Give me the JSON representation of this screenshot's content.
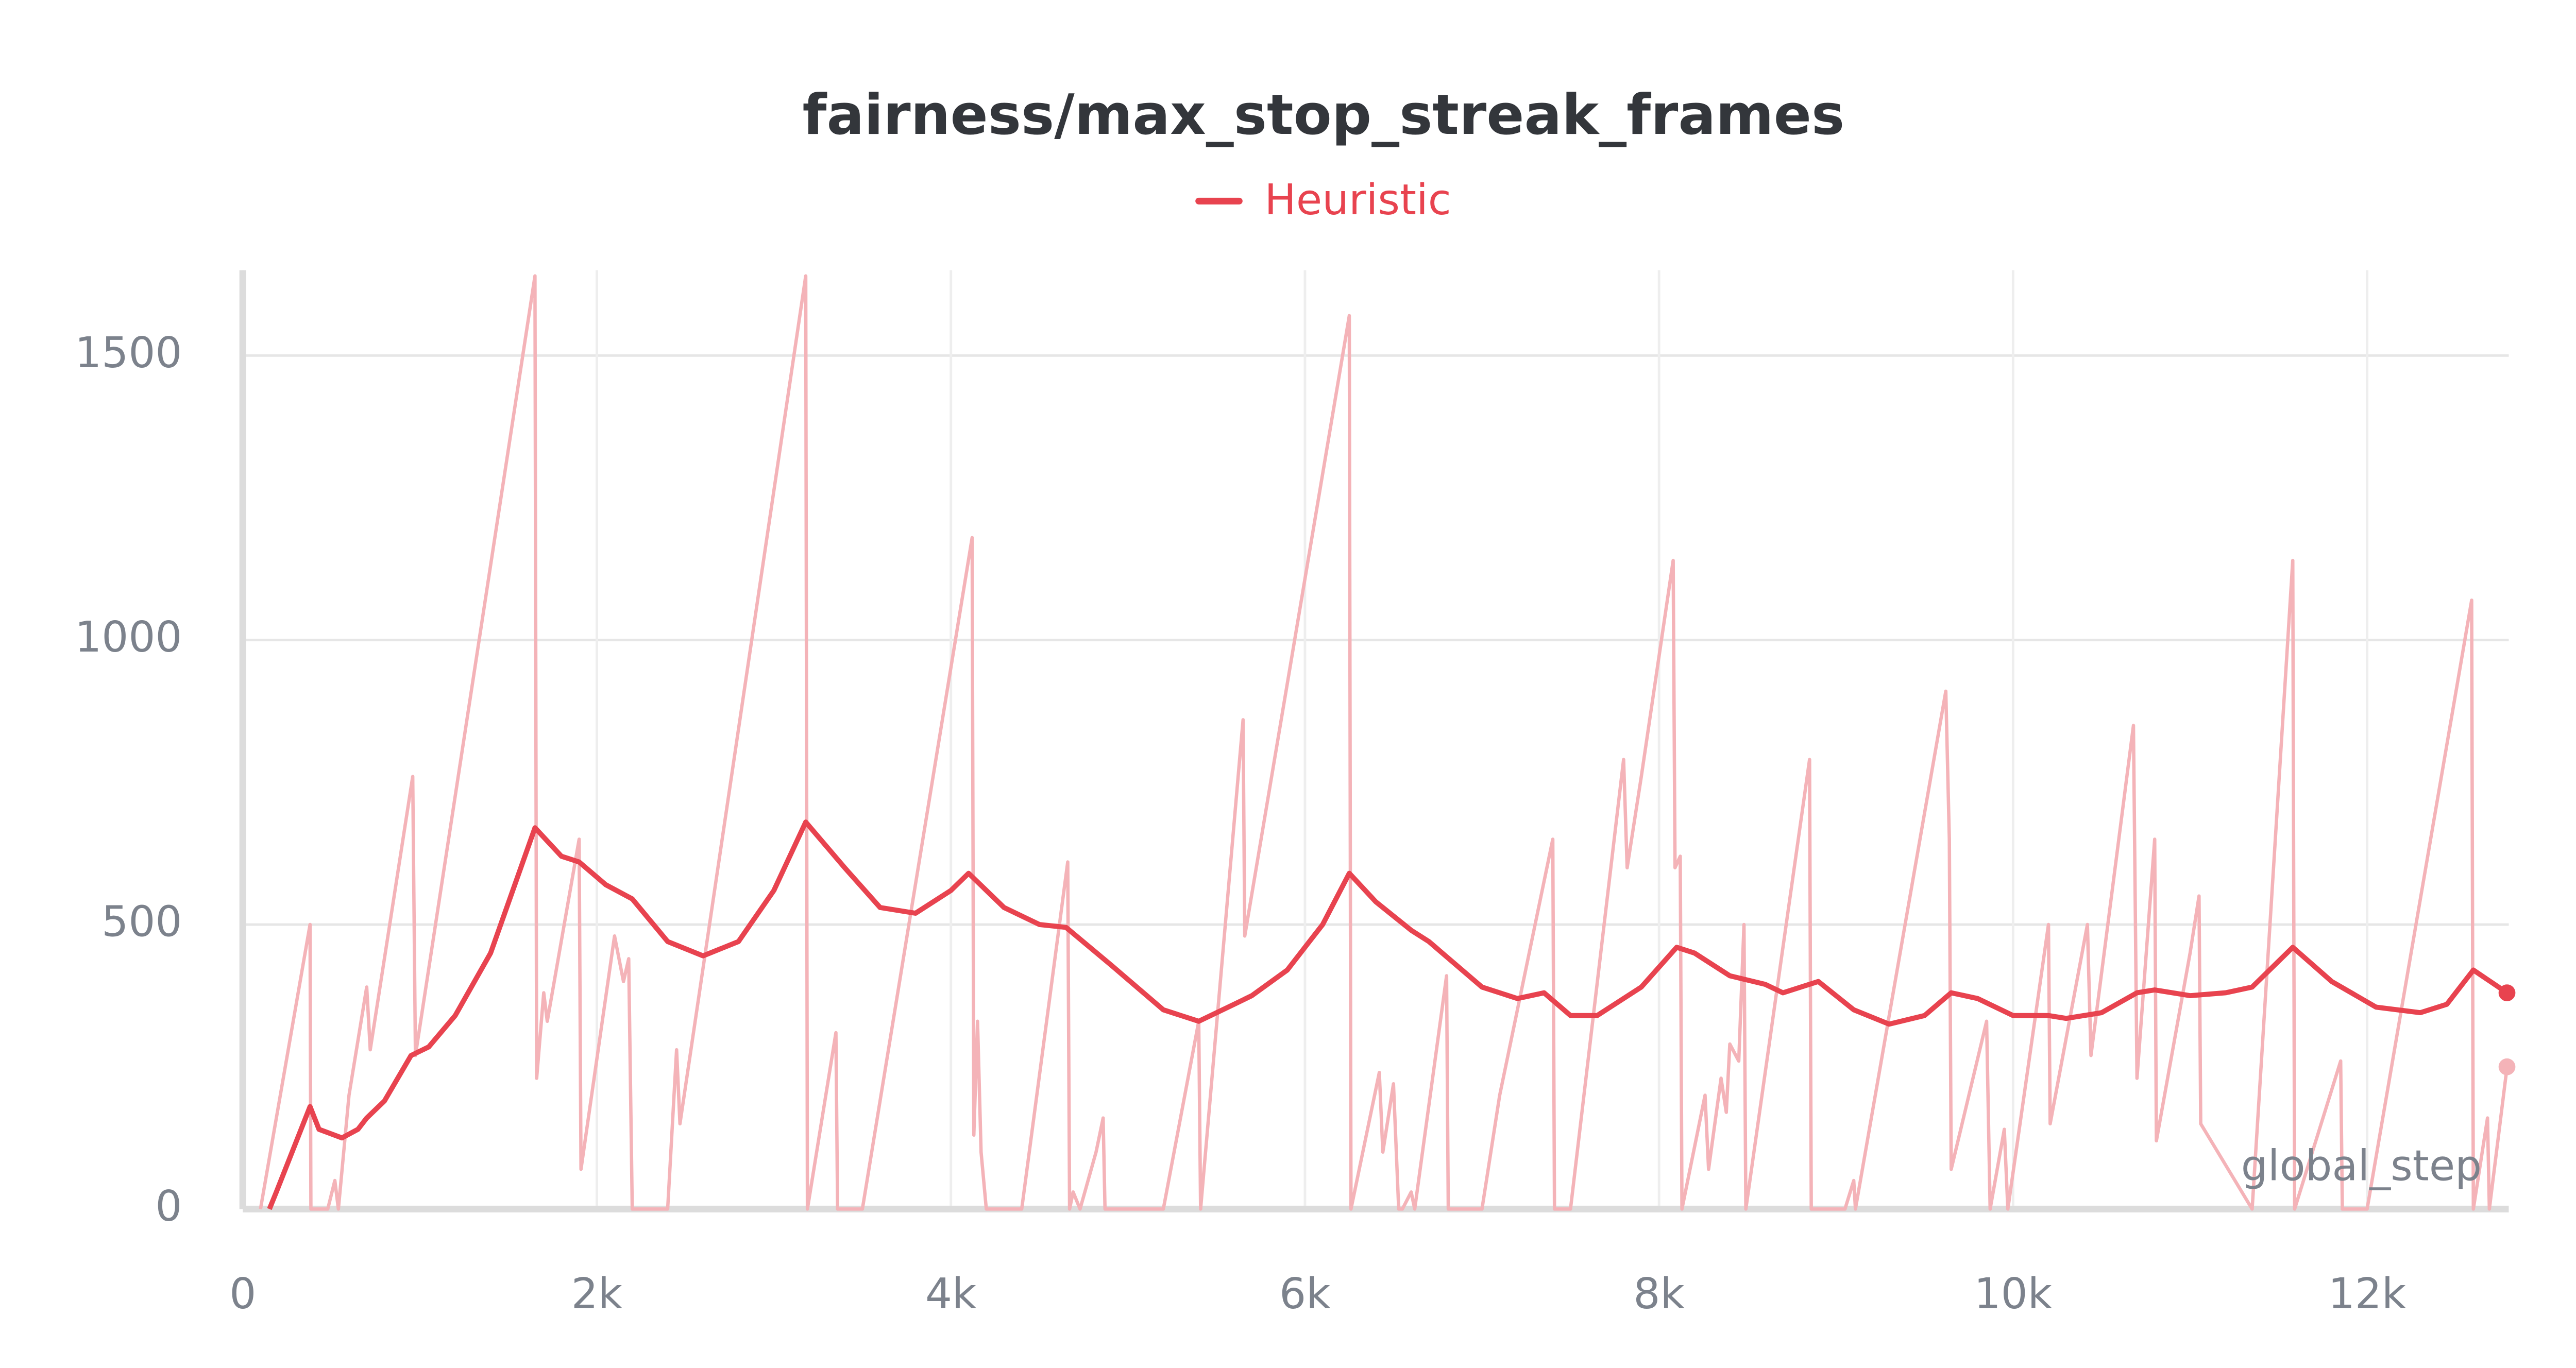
{
  "chart_data": {
    "type": "line",
    "title": "fairness/max_stop_streak_frames",
    "x_label": "global_step",
    "xlim": [
      0,
      12800
    ],
    "ylim": [
      0,
      1650
    ],
    "xticks": [
      0,
      {
        "value": 2000,
        "label": "2k"
      },
      {
        "value": 4000,
        "label": "4k"
      },
      {
        "value": 6000,
        "label": "6k"
      },
      {
        "value": 8000,
        "label": "8k"
      },
      {
        "value": 10000,
        "label": "10k"
      },
      {
        "value": 12000,
        "label": "12k"
      }
    ],
    "yticks": [
      0,
      500,
      1000,
      1500
    ],
    "grid": true,
    "legend": "top",
    "series": [
      {
        "name": "Heuristic",
        "color": "#e8434f",
        "x": [
          150,
          190,
          380,
          430,
          560,
          650,
          700,
          800,
          950,
          1050,
          1200,
          1400,
          1650,
          1800,
          1900,
          2050,
          2200,
          2400,
          2600,
          2800,
          3000,
          3180,
          3400,
          3600,
          3800,
          4000,
          4100,
          4300,
          4500,
          4650,
          4900,
          5200,
          5400,
          5600,
          5700,
          5900,
          6100,
          6250,
          6400,
          6600,
          6700,
          7000,
          7200,
          7350,
          7500,
          7650,
          7900,
          8100,
          8200,
          8400,
          8600,
          8700,
          8900,
          9100,
          9300,
          9500,
          9650,
          9800,
          10000,
          10200,
          10300,
          10500,
          10700,
          10800,
          11000,
          11200,
          11350,
          11580,
          11800,
          12050,
          12300,
          12450,
          12600,
          12790
        ],
        "values": [
          0,
          30,
          180,
          140,
          125,
          140,
          160,
          190,
          270,
          285,
          340,
          450,
          670,
          620,
          610,
          570,
          545,
          470,
          445,
          470,
          560,
          680,
          600,
          530,
          520,
          560,
          590,
          530,
          500,
          495,
          430,
          350,
          330,
          360,
          375,
          420,
          500,
          590,
          540,
          490,
          470,
          390,
          370,
          380,
          340,
          340,
          390,
          460,
          450,
          410,
          395,
          380,
          400,
          350,
          325,
          340,
          380,
          370,
          340,
          340,
          335,
          345,
          380,
          385,
          375,
          380,
          390,
          460,
          400,
          355,
          345,
          360,
          420,
          380
        ]
      },
      {
        "color": "#f4b3b8",
        "x": [
          100,
          380,
          385,
          480,
          520,
          540,
          600,
          700,
          720,
          960,
          975,
          1650,
          1660,
          1700,
          1720,
          1900,
          1910,
          2100,
          2150,
          2180,
          2200,
          2400,
          2450,
          2470,
          3180,
          3190,
          3350,
          3360,
          3500,
          4120,
          4130,
          4150,
          4170,
          4200,
          4400,
          4660,
          4670,
          4690,
          4730,
          4820,
          4860,
          4870,
          5200,
          5400,
          5410,
          5650,
          5660,
          6250,
          6260,
          6420,
          6440,
          6500,
          6530,
          6550,
          6600,
          6620,
          6800,
          6810,
          7000,
          7100,
          7400,
          7410,
          7500,
          7800,
          7820,
          7900,
          8080,
          8090,
          8120,
          8130,
          8260,
          8280,
          8350,
          8380,
          8400,
          8450,
          8480,
          8490,
          8850,
          8860,
          9050,
          9100,
          9110,
          9620,
          9640,
          9650,
          9850,
          9870,
          9950,
          9970,
          10200,
          10210,
          10420,
          10440,
          10680,
          10700,
          10800,
          10810,
          11000,
          11050,
          11060,
          11350,
          11580,
          11590,
          11850,
          11860,
          12000,
          12590,
          12600,
          12680,
          12690,
          12790
        ],
        "values": [
          0,
          500,
          0,
          0,
          50,
          0,
          200,
          390,
          280,
          760,
          270,
          1640,
          230,
          380,
          330,
          650,
          70,
          480,
          400,
          440,
          0,
          0,
          280,
          150,
          1640,
          0,
          310,
          0,
          0,
          1180,
          130,
          330,
          100,
          0,
          0,
          610,
          0,
          30,
          0,
          100,
          160,
          0,
          0,
          330,
          0,
          860,
          480,
          1570,
          0,
          240,
          100,
          220,
          0,
          0,
          30,
          0,
          410,
          0,
          0,
          200,
          650,
          0,
          0,
          790,
          600,
          760,
          1140,
          600,
          620,
          0,
          200,
          70,
          230,
          170,
          290,
          260,
          500,
          0,
          790,
          0,
          0,
          50,
          0,
          910,
          650,
          70,
          330,
          0,
          140,
          0,
          500,
          150,
          500,
          270,
          850,
          230,
          650,
          120,
          450,
          550,
          150,
          0,
          1140,
          0,
          260,
          0,
          0,
          1070,
          0,
          160,
          0,
          250
        ]
      }
    ]
  }
}
